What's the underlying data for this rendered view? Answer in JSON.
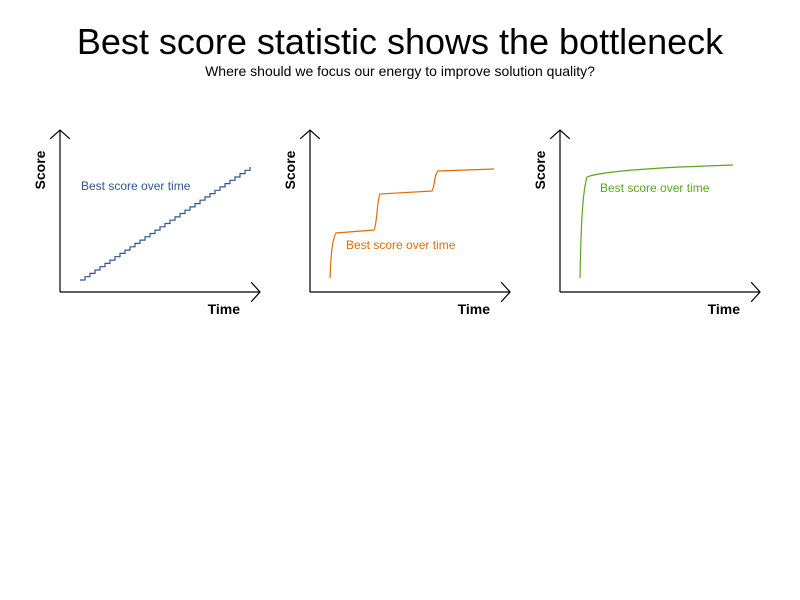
{
  "slide": {
    "title": "Best score statistic shows the bottleneck",
    "subtitle": "Where should we focus our energy to improve solution quality?"
  },
  "colors": {
    "axis": "#000000",
    "panel_1": "#2f5597",
    "panel_2": "#e36c09",
    "panel_3": "#5aa519"
  },
  "panels": [
    {
      "y_axis_label": "Score",
      "x_axis_label": "Time",
      "curve_label": "Best score over time",
      "shape": "steady-staircase"
    },
    {
      "y_axis_label": "Score",
      "x_axis_label": "Time",
      "curve_label": "Best score over time",
      "shape": "three-plateaus"
    },
    {
      "y_axis_label": "Score",
      "x_axis_label": "Time",
      "curve_label": "Best score over time",
      "shape": "early-jump-then-flat"
    }
  ]
}
